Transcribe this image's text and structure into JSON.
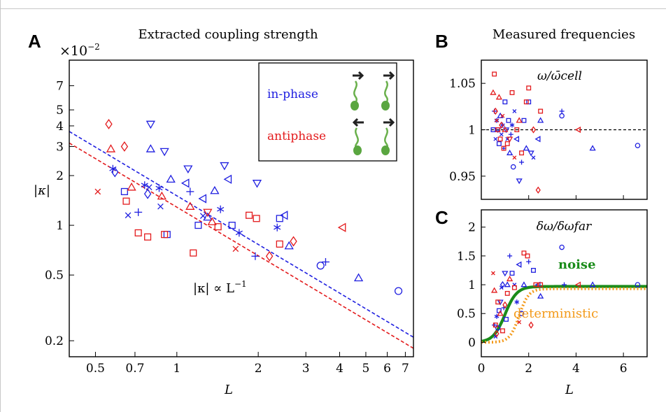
{
  "colors": {
    "blue": "#1f1fe0",
    "red": "#e31a1c",
    "green": "#1a8c1a",
    "orange": "#f39a1a",
    "black": "#000000"
  },
  "chart_data": [
    {
      "panel_label": "A",
      "type": "scatter",
      "title": "Extracted coupling strength",
      "xlabel": "L",
      "ylabel": "|κ|",
      "multiplier_label": "×10",
      "multiplier_exp": "−2",
      "xscale": "log",
      "yscale": "log",
      "xlim": [
        0.4,
        7.5
      ],
      "ylim": [
        0.16,
        10
      ],
      "x_ticks": [
        {
          "v": 0.5,
          "label": "0.5"
        },
        {
          "v": 0.7,
          "label": "0.7"
        },
        {
          "v": 1,
          "label": "1"
        },
        {
          "v": 2,
          "label": "2"
        },
        {
          "v": 3,
          "label": "3"
        },
        {
          "v": 4,
          "label": "4"
        },
        {
          "v": 5,
          "label": "5"
        },
        {
          "v": 6,
          "label": "6"
        },
        {
          "v": 7,
          "label": "7"
        }
      ],
      "y_ticks": [
        {
          "v": 0.2,
          "label": "0.2"
        },
        {
          "v": 0.5,
          "label": "0.5"
        },
        {
          "v": 1,
          "label": "1"
        },
        {
          "v": 2,
          "label": "2"
        },
        {
          "v": 3,
          "label": "3"
        },
        {
          "v": 4,
          "label": "4"
        },
        {
          "v": 5,
          "label": "5"
        },
        {
          "v": 7,
          "label": "7"
        }
      ],
      "legend": [
        {
          "label": "in-phase",
          "color": "#1f1fe0"
        },
        {
          "label": "antiphase",
          "color": "#e31a1c"
        }
      ],
      "annotation": {
        "text": "|κ| ∝ L",
        "exp": "−1"
      },
      "fit_lines": [
        {
          "color": "#1f1fe0",
          "x": [
            0.4,
            7.5
          ],
          "y": [
            3.7,
            0.21
          ]
        },
        {
          "color": "#e31a1c",
          "x": [
            0.4,
            7.5
          ],
          "y": [
            3.15,
            0.18
          ]
        }
      ],
      "series": [
        {
          "color": "#1f1fe0",
          "points": [
            [
              0.59,
              2.1,
              "diamond"
            ],
            [
              0.58,
              2.2,
              "asterisk"
            ],
            [
              0.64,
              1.6,
              "square"
            ],
            [
              0.66,
              1.15,
              "x"
            ],
            [
              0.72,
              1.2,
              "plus"
            ],
            [
              0.76,
              1.75,
              "asterisk"
            ],
            [
              0.78,
              1.55,
              "diamond"
            ],
            [
              0.79,
              1.7,
              "x"
            ],
            [
              0.8,
              4.1,
              "tri_down"
            ],
            [
              0.8,
              2.9,
              "tri_up"
            ],
            [
              0.86,
              1.68,
              "asterisk"
            ],
            [
              0.87,
              1.3,
              "x"
            ],
            [
              0.9,
              2.8,
              "tri_down"
            ],
            [
              0.92,
              0.88,
              "square"
            ],
            [
              0.95,
              1.9,
              "tri_up"
            ],
            [
              1.08,
              1.8,
              "tri_left"
            ],
            [
              1.1,
              2.2,
              "tri_down"
            ],
            [
              1.12,
              1.6,
              "plus"
            ],
            [
              1.2,
              1.0,
              "square"
            ],
            [
              1.25,
              1.45,
              "tri_left"
            ],
            [
              1.25,
              1.14,
              "x"
            ],
            [
              1.3,
              1.12,
              "tri_up"
            ],
            [
              1.38,
              1.62,
              "tri_up"
            ],
            [
              1.45,
              1.25,
              "asterisk"
            ],
            [
              1.5,
              2.3,
              "tri_down"
            ],
            [
              1.55,
              1.9,
              "tri_left"
            ],
            [
              1.6,
              1.0,
              "square"
            ],
            [
              1.7,
              0.9,
              "asterisk"
            ],
            [
              1.95,
              0.65,
              "plus"
            ],
            [
              1.98,
              1.8,
              "tri_down"
            ],
            [
              2.35,
              0.97,
              "asterisk"
            ],
            [
              2.4,
              1.1,
              "square"
            ],
            [
              2.5,
              1.15,
              "tri_left"
            ],
            [
              2.6,
              0.75,
              "tri_up"
            ],
            [
              3.4,
              0.57,
              "circle"
            ],
            [
              3.55,
              0.6,
              "plus"
            ],
            [
              4.7,
              0.48,
              "tri_up"
            ],
            [
              6.6,
              0.4,
              "circle"
            ]
          ]
        },
        {
          "color": "#e31a1c",
          "points": [
            [
              0.51,
              1.6,
              "x"
            ],
            [
              0.56,
              4.1,
              "diamond"
            ],
            [
              0.57,
              2.9,
              "tri_up"
            ],
            [
              0.64,
              3.0,
              "diamond"
            ],
            [
              0.65,
              1.4,
              "square"
            ],
            [
              0.68,
              1.7,
              "tri_up"
            ],
            [
              0.72,
              0.9,
              "square"
            ],
            [
              0.78,
              0.85,
              "square"
            ],
            [
              0.88,
              1.5,
              "tri_up"
            ],
            [
              0.9,
              0.88,
              "square"
            ],
            [
              1.12,
              1.3,
              "tri_up"
            ],
            [
              1.15,
              0.68,
              "square"
            ],
            [
              1.3,
              1.2,
              "tri_down"
            ],
            [
              1.35,
              1.05,
              "tri_up"
            ],
            [
              1.42,
              0.98,
              "square"
            ],
            [
              1.65,
              0.72,
              "x"
            ],
            [
              1.85,
              1.15,
              "square"
            ],
            [
              1.97,
              1.1,
              "square"
            ],
            [
              2.2,
              0.65,
              "diamond"
            ],
            [
              2.4,
              0.77,
              "square"
            ],
            [
              2.7,
              0.8,
              "diamond"
            ],
            [
              4.1,
              0.97,
              "tri_left"
            ]
          ]
        }
      ]
    },
    {
      "panel_label": "B",
      "type": "scatter",
      "title": "Measured frequencies",
      "inner_label": "ω/ω̄cell",
      "xlim": [
        0,
        7
      ],
      "ylim": [
        0.925,
        1.075
      ],
      "y_ticks": [
        {
          "v": 0.95,
          "label": "0.95"
        },
        {
          "v": 1,
          "label": "1"
        },
        {
          "v": 1.05,
          "label": "1.05"
        }
      ],
      "reference_line": 1.0,
      "series": [
        {
          "color": "#1f1fe0",
          "points": [
            [
              0.5,
              1.0,
              "square"
            ],
            [
              0.55,
              1.02,
              "plus"
            ],
            [
              0.6,
              0.99,
              "x"
            ],
            [
              0.65,
              1.01,
              "asterisk"
            ],
            [
              0.7,
              1.0,
              "tri_down"
            ],
            [
              0.75,
              0.985,
              "square"
            ],
            [
              0.8,
              1.015,
              "tri_up"
            ],
            [
              0.85,
              0.995,
              "x"
            ],
            [
              0.9,
              1.005,
              "asterisk"
            ],
            [
              0.95,
              0.98,
              "plus"
            ],
            [
              1.0,
              1.03,
              "square"
            ],
            [
              1.05,
              1.0,
              "tri_down"
            ],
            [
              1.1,
              0.99,
              "x"
            ],
            [
              1.15,
              1.01,
              "square"
            ],
            [
              1.2,
              0.975,
              "tri_up"
            ],
            [
              1.25,
              0.995,
              "plus"
            ],
            [
              1.3,
              1.005,
              "asterisk"
            ],
            [
              1.35,
              0.96,
              "circle"
            ],
            [
              1.4,
              1.02,
              "x"
            ],
            [
              1.5,
              0.99,
              "tri_left"
            ],
            [
              1.6,
              0.945,
              "tri_down"
            ],
            [
              1.7,
              0.965,
              "plus"
            ],
            [
              1.8,
              1.01,
              "square"
            ],
            [
              1.9,
              0.98,
              "tri_up"
            ],
            [
              2.0,
              1.03,
              "square"
            ],
            [
              2.1,
              0.975,
              "tri_down"
            ],
            [
              2.2,
              0.97,
              "x"
            ],
            [
              2.4,
              0.99,
              "tri_left"
            ],
            [
              2.5,
              1.01,
              "tri_up"
            ],
            [
              3.4,
              1.015,
              "circle"
            ],
            [
              3.4,
              1.02,
              "plus"
            ],
            [
              4.7,
              0.98,
              "tri_up"
            ],
            [
              6.6,
              0.983,
              "circle"
            ]
          ]
        },
        {
          "color": "#e31a1c",
          "points": [
            [
              0.5,
              1.04,
              "tri_up"
            ],
            [
              0.55,
              1.06,
              "square"
            ],
            [
              0.6,
              1.02,
              "diamond"
            ],
            [
              0.65,
              1.01,
              "x"
            ],
            [
              0.7,
              1.0,
              "square"
            ],
            [
              0.75,
              1.035,
              "tri_up"
            ],
            [
              0.8,
              0.99,
              "square"
            ],
            [
              0.85,
              1.005,
              "diamond"
            ],
            [
              0.9,
              1.015,
              "x"
            ],
            [
              0.95,
              0.98,
              "square"
            ],
            [
              1.0,
              1.0,
              "tri_up"
            ],
            [
              1.1,
              0.985,
              "square"
            ],
            [
              1.2,
              0.99,
              "tri_down"
            ],
            [
              1.3,
              1.04,
              "square"
            ],
            [
              1.4,
              0.97,
              "x"
            ],
            [
              1.5,
              1.0,
              "square"
            ],
            [
              1.6,
              1.01,
              "tri_up"
            ],
            [
              1.7,
              0.975,
              "square"
            ],
            [
              1.9,
              1.03,
              "square"
            ],
            [
              2.0,
              1.045,
              "square"
            ],
            [
              2.2,
              1.0,
              "diamond"
            ],
            [
              2.4,
              0.935,
              "diamond"
            ],
            [
              2.5,
              1.02,
              "square"
            ],
            [
              4.1,
              1.0,
              "tri_left"
            ]
          ]
        }
      ]
    },
    {
      "panel_label": "C",
      "type": "scatter",
      "inner_label": "δω/δωfar",
      "xlabel": "L",
      "xlim": [
        0,
        7
      ],
      "ylim": [
        -0.25,
        2.3
      ],
      "x_ticks": [
        {
          "v": 0,
          "label": "0"
        },
        {
          "v": 2,
          "label": "2"
        },
        {
          "v": 4,
          "label": "4"
        },
        {
          "v": 6,
          "label": "6"
        }
      ],
      "y_ticks": [
        {
          "v": 0,
          "label": "0"
        },
        {
          "v": 0.5,
          "label": "0.5"
        },
        {
          "v": 1,
          "label": "1"
        },
        {
          "v": 1.5,
          "label": "1.5"
        },
        {
          "v": 2,
          "label": "2"
        }
      ],
      "curve_labels": [
        {
          "text": "noise",
          "color": "#1a8c1a"
        },
        {
          "text": "deterministic",
          "color": "#f39a1a"
        }
      ],
      "curves": [
        {
          "name": "noise",
          "color": "#1a8c1a",
          "style": "solid",
          "x0": 1.0,
          "w": 0.25,
          "plateau": 0.97
        },
        {
          "name": "deterministic",
          "color": "#f39a1a",
          "style": "dotted",
          "x0": 1.6,
          "w": 0.2,
          "plateau": 0.93
        }
      ],
      "series": [
        {
          "color": "#1f1fe0",
          "points": [
            [
              0.55,
              0.3,
              "plus"
            ],
            [
              0.6,
              0.1,
              "x"
            ],
            [
              0.65,
              0.45,
              "asterisk"
            ],
            [
              0.7,
              0.25,
              "circle"
            ],
            [
              0.75,
              0.55,
              "square"
            ],
            [
              0.8,
              0.7,
              "tri_down"
            ],
            [
              0.85,
              0.95,
              "x"
            ],
            [
              0.9,
              1.0,
              "diamond"
            ],
            [
              0.95,
              0.6,
              "plus"
            ],
            [
              1.0,
              1.2,
              "tri_down"
            ],
            [
              1.05,
              0.4,
              "square"
            ],
            [
              1.1,
              1.0,
              "tri_up"
            ],
            [
              1.2,
              1.5,
              "plus"
            ],
            [
              1.3,
              1.2,
              "square"
            ],
            [
              1.4,
              1.0,
              "x"
            ],
            [
              1.5,
              0.7,
              "asterisk"
            ],
            [
              1.6,
              1.35,
              "tri_left"
            ],
            [
              1.7,
              0.5,
              "circle"
            ],
            [
              1.8,
              1.0,
              "tri_up"
            ],
            [
              2.0,
              1.4,
              "plus"
            ],
            [
              2.2,
              1.25,
              "square"
            ],
            [
              2.4,
              1.0,
              "tri_left"
            ],
            [
              2.5,
              0.8,
              "tri_up"
            ],
            [
              3.4,
              1.65,
              "circle"
            ],
            [
              3.5,
              1.0,
              "plus"
            ],
            [
              4.7,
              1.0,
              "tri_up"
            ],
            [
              6.6,
              1.0,
              "circle"
            ]
          ]
        },
        {
          "color": "#e31a1c",
          "points": [
            [
              0.5,
              1.2,
              "x"
            ],
            [
              0.55,
              0.9,
              "tri_up"
            ],
            [
              0.6,
              0.3,
              "square"
            ],
            [
              0.65,
              0.15,
              "diamond"
            ],
            [
              0.7,
              0.7,
              "square"
            ],
            [
              0.8,
              0.5,
              "tri_up"
            ],
            [
              0.9,
              0.2,
              "square"
            ],
            [
              1.0,
              0.65,
              "diamond"
            ],
            [
              1.1,
              0.85,
              "square"
            ],
            [
              1.2,
              1.1,
              "tri_up"
            ],
            [
              1.4,
              0.95,
              "square"
            ],
            [
              1.6,
              0.35,
              "x"
            ],
            [
              1.8,
              1.55,
              "square"
            ],
            [
              1.95,
              1.5,
              "square"
            ],
            [
              2.1,
              0.3,
              "diamond"
            ],
            [
              2.3,
              1.0,
              "square"
            ],
            [
              2.5,
              1.0,
              "square"
            ],
            [
              4.1,
              1.0,
              "tri_left"
            ]
          ]
        }
      ]
    }
  ]
}
